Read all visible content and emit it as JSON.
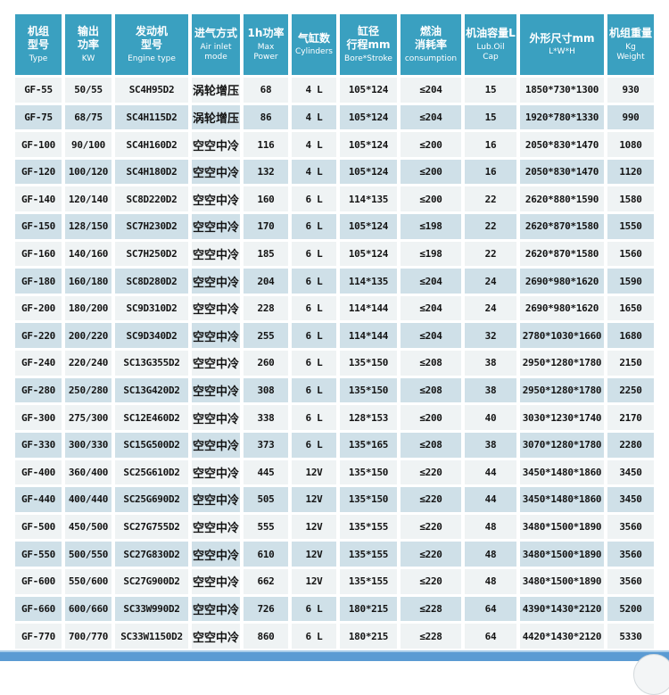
{
  "table": {
    "columns": [
      {
        "id": "model",
        "zh_lines": [
          "机组",
          "型号"
        ],
        "en_lines": [
          "Type"
        ]
      },
      {
        "id": "output",
        "zh_lines": [
          "输出",
          "功率"
        ],
        "en_lines": [
          "KW"
        ]
      },
      {
        "id": "engine",
        "zh_lines": [
          "发动机",
          "型号"
        ],
        "en_lines": [
          "Engine type"
        ]
      },
      {
        "id": "air-inlet",
        "zh_lines": [
          "进气方式"
        ],
        "en_lines": [
          "Air inlet",
          "mode"
        ]
      },
      {
        "id": "max-power",
        "zh_lines": [
          "1h功率"
        ],
        "en_lines": [
          "Max Power"
        ]
      },
      {
        "id": "cylinders",
        "zh_lines": [
          "气缸数"
        ],
        "en_lines": [
          "Cylinders"
        ]
      },
      {
        "id": "bore-stroke",
        "zh_lines": [
          "缸径",
          "行程mm"
        ],
        "en_lines": [
          "Bore*Stroke"
        ]
      },
      {
        "id": "consumption",
        "zh_lines": [
          "燃油",
          "消耗率"
        ],
        "en_lines": [
          "consumption"
        ]
      },
      {
        "id": "oil-cap",
        "zh_lines": [
          "机油容量L"
        ],
        "en_lines": [
          "Lub.Oil",
          "Cap"
        ]
      },
      {
        "id": "dimensions",
        "zh_lines": [
          "外形尺寸mm"
        ],
        "en_lines": [
          "L*W*H"
        ]
      },
      {
        "id": "weight",
        "zh_lines": [
          "机组重量"
        ],
        "en_lines": [
          "Kg",
          "Weight"
        ]
      }
    ],
    "rows": [
      [
        "GF-55",
        "50/55",
        "SC4H95D2",
        "涡轮增压",
        "68",
        "4 L",
        "105*124",
        "≤204",
        "15",
        "1850*730*1300",
        "930"
      ],
      [
        "GF-75",
        "68/75",
        "SC4H115D2",
        "涡轮增压",
        "86",
        "4 L",
        "105*124",
        "≤204",
        "15",
        "1920*780*1330",
        "990"
      ],
      [
        "GF-100",
        "90/100",
        "SC4H160D2",
        "空空中冷",
        "116",
        "4 L",
        "105*124",
        "≤200",
        "16",
        "2050*830*1470",
        "1080"
      ],
      [
        "GF-120",
        "100/120",
        "SC4H180D2",
        "空空中冷",
        "132",
        "4 L",
        "105*124",
        "≤200",
        "16",
        "2050*830*1470",
        "1120"
      ],
      [
        "GF-140",
        "120/140",
        "SC8D220D2",
        "空空中冷",
        "160",
        "6 L",
        "114*135",
        "≤200",
        "22",
        "2620*880*1590",
        "1580"
      ],
      [
        "GF-150",
        "128/150",
        "SC7H230D2",
        "空空中冷",
        "170",
        "6 L",
        "105*124",
        "≤198",
        "22",
        "2620*870*1580",
        "1550"
      ],
      [
        "GF-160",
        "140/160",
        "SC7H250D2",
        "空空中冷",
        "185",
        "6 L",
        "105*124",
        "≤198",
        "22",
        "2620*870*1580",
        "1560"
      ],
      [
        "GF-180",
        "160/180",
        "SC8D280D2",
        "空空中冷",
        "204",
        "6 L",
        "114*135",
        "≤204",
        "24",
        "2690*980*1620",
        "1590"
      ],
      [
        "GF-200",
        "180/200",
        "SC9D310D2",
        "空空中冷",
        "228",
        "6 L",
        "114*144",
        "≤204",
        "24",
        "2690*980*1620",
        "1650"
      ],
      [
        "GF-220",
        "200/220",
        "SC9D340D2",
        "空空中冷",
        "255",
        "6 L",
        "114*144",
        "≤204",
        "32",
        "2780*1030*1660",
        "1680"
      ],
      [
        "GF-240",
        "220/240",
        "SC13G355D2",
        "空空中冷",
        "260",
        "6 L",
        "135*150",
        "≤208",
        "38",
        "2950*1280*1780",
        "2150"
      ],
      [
        "GF-280",
        "250/280",
        "SC13G420D2",
        "空空中冷",
        "308",
        "6 L",
        "135*150",
        "≤208",
        "38",
        "2950*1280*1780",
        "2250"
      ],
      [
        "GF-300",
        "275/300",
        "SC12E460D2",
        "空空中冷",
        "338",
        "6 L",
        "128*153",
        "≤200",
        "40",
        "3030*1230*1740",
        "2170"
      ],
      [
        "GF-330",
        "300/330",
        "SC15G500D2",
        "空空中冷",
        "373",
        "6 L",
        "135*165",
        "≤208",
        "38",
        "3070*1280*1780",
        "2280"
      ],
      [
        "GF-400",
        "360/400",
        "SC25G610D2",
        "空空中冷",
        "445",
        "12V",
        "135*150",
        "≤220",
        "44",
        "3450*1480*1860",
        "3450"
      ],
      [
        "GF-440",
        "400/440",
        "SC25G690D2",
        "空空中冷",
        "505",
        "12V",
        "135*150",
        "≤220",
        "44",
        "3450*1480*1860",
        "3450"
      ],
      [
        "GF-500",
        "450/500",
        "SC27G755D2",
        "空空中冷",
        "555",
        "12V",
        "135*155",
        "≤220",
        "48",
        "3480*1500*1890",
        "3560"
      ],
      [
        "GF-550",
        "500/550",
        "SC27G830D2",
        "空空中冷",
        "610",
        "12V",
        "135*155",
        "≤220",
        "48",
        "3480*1500*1890",
        "3560"
      ],
      [
        "GF-600",
        "550/600",
        "SC27G900D2",
        "空空中冷",
        "662",
        "12V",
        "135*155",
        "≤220",
        "48",
        "3480*1500*1890",
        "3560"
      ],
      [
        "GF-660",
        "600/660",
        "SC33W990D2",
        "空空中冷",
        "726",
        "6 L",
        "180*215",
        "≤228",
        "64",
        "4390*1430*2120",
        "5200"
      ],
      [
        "GF-770",
        "700/770",
        "SC33W1150D2",
        "空空中冷",
        "860",
        "6 L",
        "180*215",
        "≤228",
        "64",
        "4420*1430*2120",
        "5330"
      ]
    ]
  },
  "colors": {
    "header_bg": "#3aa0c0",
    "row_light": "#eff3f4",
    "row_blue": "#cfe0e8",
    "bottom_bar": "#5b9bd3",
    "bottom_bar_edge": "#a9cce9",
    "text": "#141414",
    "header_text": "#ffffff"
  }
}
